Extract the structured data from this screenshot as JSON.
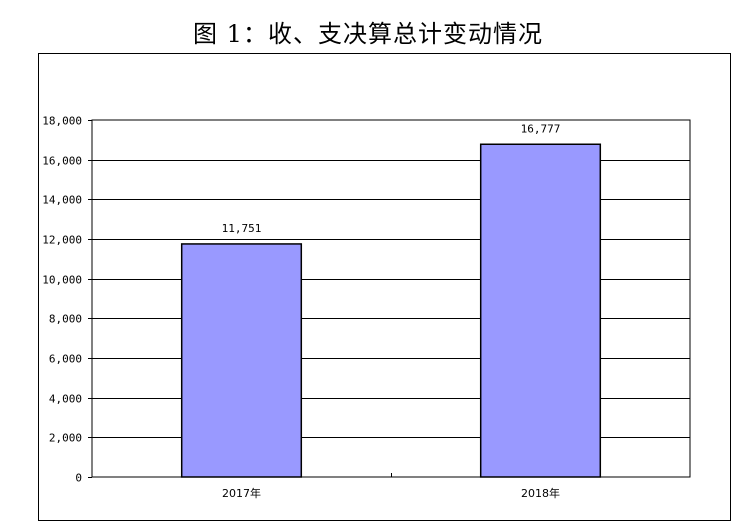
{
  "title": "图 1：收、支决算总计变动情况",
  "chart_data": {
    "type": "bar",
    "categories": [
      "2017年",
      "2018年"
    ],
    "values": [
      11751,
      16777
    ],
    "value_labels": [
      "11,751",
      "16,777"
    ],
    "yticks": [
      "0",
      "2,000",
      "4,000",
      "6,000",
      "8,000",
      "10,000",
      "12,000",
      "14,000",
      "16,000",
      "18,000"
    ],
    "ylim": [
      0,
      18000
    ],
    "grid": true,
    "bar_color": "#9999ff",
    "title": "图 1：收、支决算总计变动情况",
    "xlabel": "",
    "ylabel": ""
  }
}
